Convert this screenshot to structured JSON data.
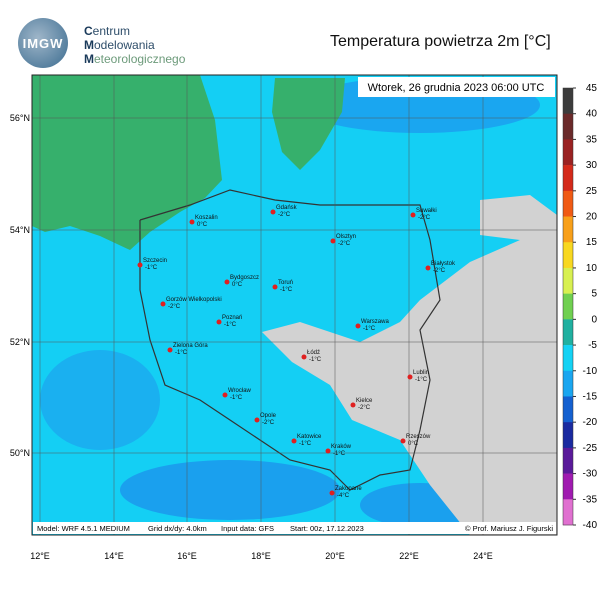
{
  "header": {
    "logo": "IMGW",
    "org": [
      "Centrum",
      "Modelowania",
      "Meteorologicznego"
    ],
    "title": "Temperatura powietrza 2m [°C]"
  },
  "map": {
    "datetime": "Wtorek, 26 grudnia 2023 06:00 UTC",
    "footer": [
      "Model: WRF 4.5.1 MEDIUM",
      "Grid dx/dy: 4.0km",
      "Input data: GFS",
      "Start: 00z, 17.12.2023"
    ],
    "credit": "© Prof. Mariusz J. Figurski",
    "lat_labels": [
      "56°N",
      "54°N",
      "52°N",
      "50°N"
    ],
    "lon_labels": [
      "12°E",
      "14°E",
      "16°E",
      "18°E",
      "20°E",
      "22°E",
      "24°E"
    ],
    "cities": [
      {
        "name": "Koszalin",
        "temp": "0°C"
      },
      {
        "name": "Gdańsk",
        "temp": "-2°C"
      },
      {
        "name": "Suwałki",
        "temp": "-2°C"
      },
      {
        "name": "Olsztyn",
        "temp": "-2°C"
      },
      {
        "name": "Szczecin",
        "temp": "-1°C"
      },
      {
        "name": "Bydgoszcz",
        "temp": "0°C"
      },
      {
        "name": "Toruń",
        "temp": "-1°C"
      },
      {
        "name": "Białystok",
        "temp": "-2°C"
      },
      {
        "name": "Gorzów Wielkopolski",
        "temp": "-2°C"
      },
      {
        "name": "Poznań",
        "temp": "-1°C"
      },
      {
        "name": "Warszawa",
        "temp": "-1°C"
      },
      {
        "name": "Zielona Góra",
        "temp": "-1°C"
      },
      {
        "name": "Łódź",
        "temp": "-1°C"
      },
      {
        "name": "Lublin",
        "temp": "-1°C"
      },
      {
        "name": "Wrocław",
        "temp": "-1°C"
      },
      {
        "name": "Opole",
        "temp": "-2°C"
      },
      {
        "name": "Kielce",
        "temp": "-2°C"
      },
      {
        "name": "Katowice",
        "temp": "-1°C"
      },
      {
        "name": "Kraków",
        "temp": "-1°C"
      },
      {
        "name": "Rzeszów",
        "temp": "0°C"
      },
      {
        "name": "Zakopane",
        "temp": "-4°C"
      }
    ]
  },
  "colorbar": {
    "ticks": [
      45,
      40,
      35,
      30,
      25,
      20,
      15,
      10,
      5,
      0,
      -5,
      -10,
      -15,
      -20,
      -25,
      -30,
      -35,
      -40
    ]
  }
}
